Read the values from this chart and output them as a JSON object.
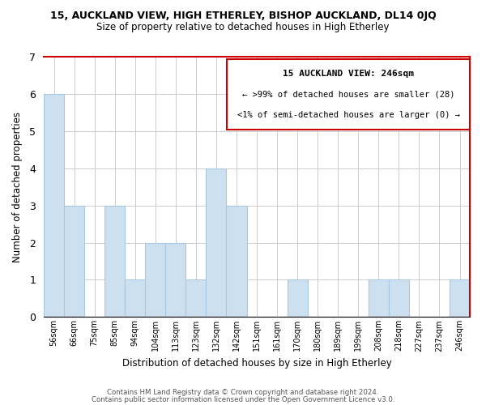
{
  "title_main": "15, AUCKLAND VIEW, HIGH ETHERLEY, BISHOP AUCKLAND, DL14 0JQ",
  "title_sub": "Size of property relative to detached houses in High Etherley",
  "xlabel": "Distribution of detached houses by size in High Etherley",
  "ylabel": "Number of detached properties",
  "bar_labels": [
    "56sqm",
    "66sqm",
    "75sqm",
    "85sqm",
    "94sqm",
    "104sqm",
    "113sqm",
    "123sqm",
    "132sqm",
    "142sqm",
    "151sqm",
    "161sqm",
    "170sqm",
    "180sqm",
    "189sqm",
    "199sqm",
    "208sqm",
    "218sqm",
    "227sqm",
    "237sqm",
    "246sqm"
  ],
  "bar_heights": [
    6,
    3,
    0,
    3,
    1,
    2,
    2,
    1,
    4,
    3,
    0,
    0,
    1,
    0,
    0,
    0,
    1,
    1,
    0,
    0,
    1
  ],
  "bar_color": "#cce0f0",
  "bar_edge_color": "#aac8e0",
  "box_title": "15 AUCKLAND VIEW: 246sqm",
  "box_line1": "← >99% of detached houses are smaller (28)",
  "box_line2": "<1% of semi-detached houses are larger (0) →",
  "box_facecolor": "#ffffff",
  "box_edge_color": "#cc0000",
  "red_spine_color": "#cc0000",
  "ylim": [
    0,
    7
  ],
  "yticks": [
    0,
    1,
    2,
    3,
    4,
    5,
    6,
    7
  ],
  "footnote1": "Contains HM Land Registry data © Crown copyright and database right 2024.",
  "footnote2": "Contains public sector information licensed under the Open Government Licence v3.0.",
  "background_color": "#ffffff",
  "grid_color": "#cccccc"
}
